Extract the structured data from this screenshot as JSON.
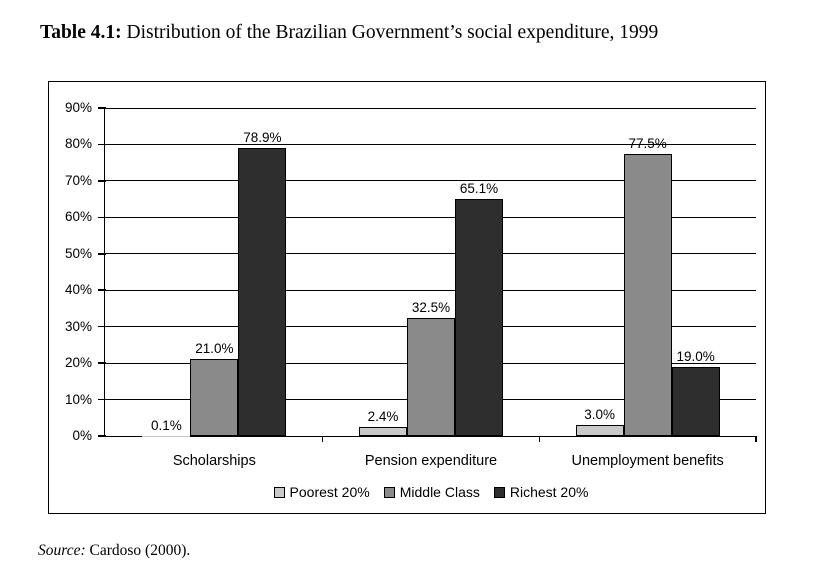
{
  "title": {
    "prefix": "Table 4.1:",
    "rest": " Distribution of the Brazilian Government’s social expenditure, 1999"
  },
  "source": {
    "prefix": "Source:",
    "rest": " Cardoso (2000)."
  },
  "chart_data": {
    "type": "bar",
    "title": "Distribution of the Brazilian Government's social expenditure, 1999",
    "categories": [
      "Scholarships",
      "Pension expenditure",
      "Unemployment benefits"
    ],
    "series": [
      {
        "name": "Poorest 20%",
        "color": "#c9c9c9",
        "values": [
          0.1,
          2.4,
          3.0
        ],
        "labels": [
          "0.1%",
          "2.4%",
          "3.0%"
        ]
      },
      {
        "name": "Middle Class",
        "color": "#8a8a8a",
        "values": [
          21.0,
          32.5,
          77.5
        ],
        "labels": [
          "21.0%",
          "32.5%",
          "77.5%"
        ]
      },
      {
        "name": "Richest 20%",
        "color": "#2e2e2e",
        "values": [
          78.9,
          65.1,
          19.0
        ],
        "labels": [
          "78.9%",
          "65.1%",
          "19.0%"
        ]
      }
    ],
    "xlabel": "",
    "ylabel": "",
    "ylim": [
      0,
      90
    ],
    "y_step": 10,
    "y_tick_suffix": "%",
    "grid": true,
    "legend_position": "bottom",
    "bar_border_color": "#000000",
    "background": "#ffffff"
  }
}
